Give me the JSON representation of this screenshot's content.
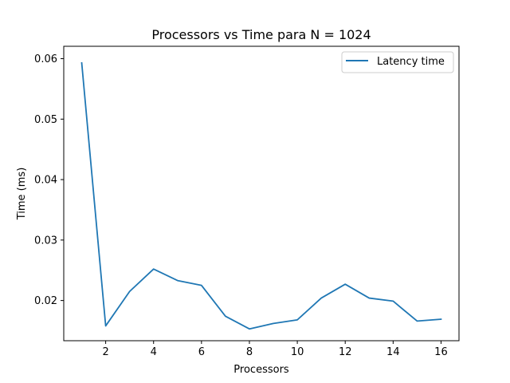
{
  "chart_data": {
    "type": "line",
    "title": "Processors vs Time para N = 1024",
    "xlabel": "Processors",
    "ylabel": "Time (ms)",
    "xlim": [
      0.25,
      16.75
    ],
    "ylim": [
      0.01335,
      0.06205
    ],
    "xticks": [
      2,
      4,
      6,
      8,
      10,
      12,
      14,
      16
    ],
    "yticks": [
      0.02,
      0.03,
      0.04,
      0.05,
      0.06
    ],
    "ytick_labels": [
      "0.02",
      "0.03",
      "0.04",
      "0.05",
      "0.06"
    ],
    "grid": false,
    "legend_position": "upper right",
    "series": [
      {
        "name": "Latency time",
        "color": "#1f77b4",
        "x": [
          1,
          2,
          3,
          4,
          5,
          6,
          7,
          8,
          9,
          10,
          11,
          12,
          13,
          14,
          15,
          16
        ],
        "y": [
          0.0593,
          0.0158,
          0.0215,
          0.0252,
          0.0233,
          0.0225,
          0.0174,
          0.0153,
          0.0162,
          0.0168,
          0.0204,
          0.0227,
          0.0204,
          0.0199,
          0.0166,
          0.0169
        ]
      }
    ]
  }
}
